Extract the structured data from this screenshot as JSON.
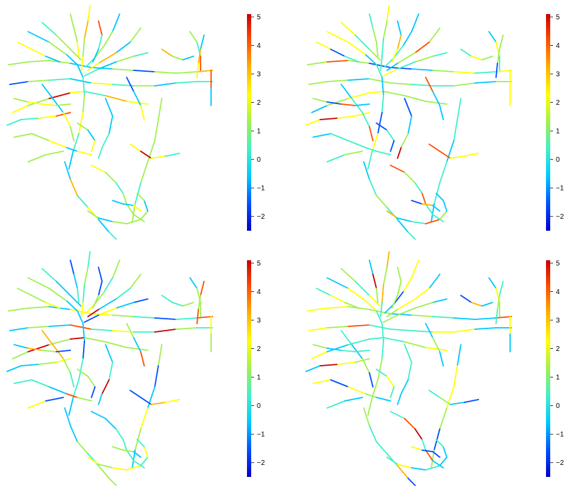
{
  "figure": {
    "panels": [
      {
        "id": "top-left"
      },
      {
        "id": "top-right"
      },
      {
        "id": "bottom-left"
      },
      {
        "id": "bottom-right"
      }
    ],
    "colorbar": {
      "min": -2.5,
      "max": 5.1,
      "ticks": [
        "−2",
        "−1",
        "0",
        "1",
        "2",
        "3",
        "4",
        "5"
      ],
      "tick_values": [
        -2,
        -1,
        0,
        1,
        2,
        3,
        4,
        5
      ],
      "colormap": [
        "#0000c8",
        "#0050ff",
        "#00c8ff",
        "#40f0c8",
        "#a0f050",
        "#ffff00",
        "#ffb400",
        "#ff5000",
        "#c80000"
      ]
    }
  }
}
